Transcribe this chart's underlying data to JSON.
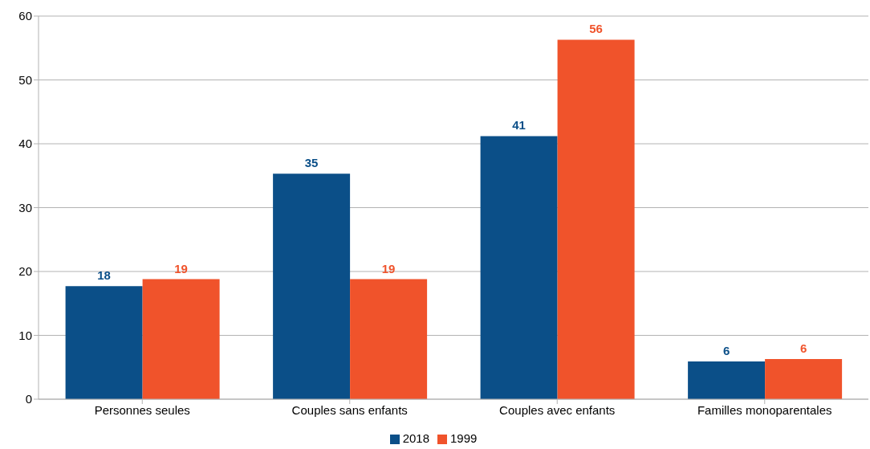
{
  "chart_data": {
    "type": "bar",
    "categories": [
      "Personnes seules",
      "Couples sans enfants",
      "Couples avec enfants",
      "Familles monoparentales"
    ],
    "series": [
      {
        "name": "2018",
        "color": "#0b4f88",
        "values": [
          17.7,
          35.3,
          41.2,
          5.9
        ],
        "value_labels": [
          "18",
          "35",
          "41",
          "6"
        ]
      },
      {
        "name": "1999",
        "color": "#f0532b",
        "values": [
          18.8,
          18.8,
          56.3,
          6.3
        ],
        "value_labels": [
          "19",
          "19",
          "56",
          "6"
        ]
      }
    ],
    "ylim": [
      0,
      60
    ],
    "yticks": [
      0,
      10,
      20,
      30,
      40,
      50,
      60
    ],
    "grid": "y",
    "legend": "bottom"
  }
}
